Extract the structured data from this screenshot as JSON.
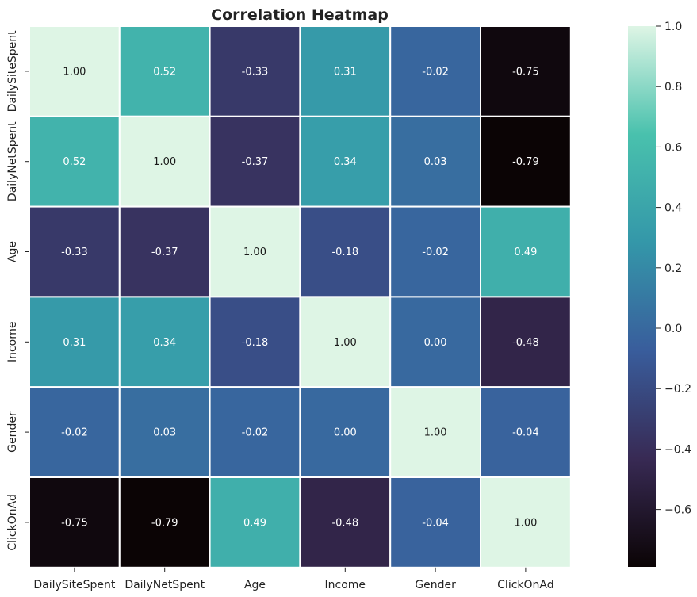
{
  "chart_data": {
    "type": "heatmap",
    "title": "Correlation Heatmap",
    "xlabel": "",
    "ylabel": "",
    "x_labels": [
      "DailySiteSpent",
      "DailyNetSpent",
      "Age",
      "Income",
      "Gender",
      "ClickOnAd"
    ],
    "y_labels": [
      "DailySiteSpent",
      "DailyNetSpent",
      "Age",
      "Income",
      "Gender",
      "ClickOnAd"
    ],
    "values": [
      [
        1.0,
        0.52,
        -0.33,
        0.31,
        -0.02,
        -0.75
      ],
      [
        0.52,
        1.0,
        -0.37,
        0.34,
        0.03,
        -0.79
      ],
      [
        -0.33,
        -0.37,
        1.0,
        -0.18,
        -0.02,
        0.49
      ],
      [
        0.31,
        0.34,
        -0.18,
        1.0,
        0.0,
        -0.48
      ],
      [
        -0.02,
        0.03,
        -0.02,
        0.0,
        1.0,
        -0.04
      ],
      [
        -0.75,
        -0.79,
        0.49,
        -0.48,
        -0.04,
        1.0
      ]
    ],
    "value_format": "0.00",
    "colormap": "mako",
    "vmin": -0.79,
    "vmax": 1.0,
    "colorbar_ticks": [
      1.0,
      0.8,
      0.6,
      0.4,
      0.2,
      0.0,
      -0.2,
      -0.4,
      -0.6
    ],
    "colorbar_tick_labels": [
      "1.0",
      "0.8",
      "0.6",
      "0.4",
      "0.2",
      "0.0",
      "−0.2",
      "−0.4",
      "−0.6"
    ],
    "grid": true,
    "colors": {
      "mako_stops": [
        "#0b0405",
        "#382a54",
        "#395d9c",
        "#3497a9",
        "#49c1ad",
        "#def5e5"
      ],
      "gridline": "#ffffff",
      "text_dark": "#1a1a1a",
      "text_light": "#ffffff"
    }
  }
}
